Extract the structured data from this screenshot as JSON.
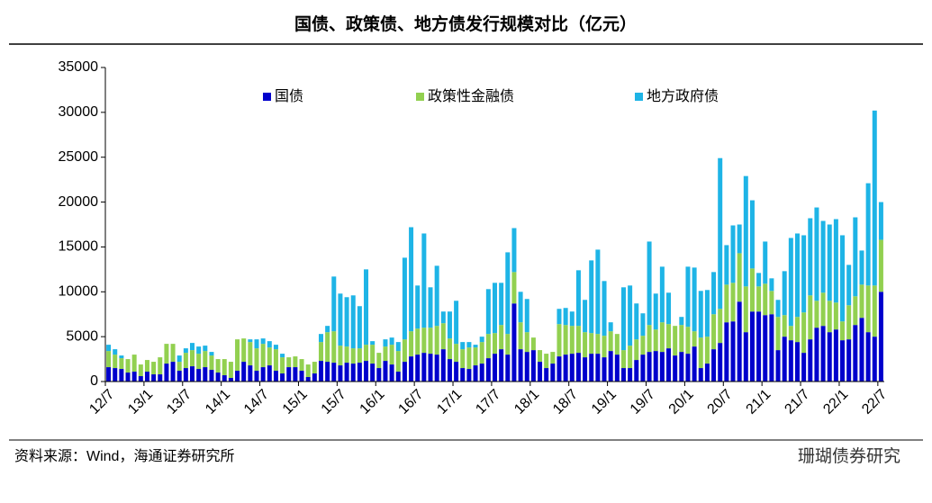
{
  "chart_data": {
    "type": "stacked_bar",
    "title": "国债、政策债、地方债发行规模对比（亿元）",
    "source": "资料来源：Wind，海通证券研究所",
    "watermark": "珊瑚债券研究",
    "categories": [
      "12/7",
      null,
      null,
      null,
      null,
      null,
      "13/1",
      null,
      null,
      null,
      null,
      null,
      "13/7",
      null,
      null,
      null,
      null,
      null,
      "14/1",
      null,
      null,
      null,
      null,
      null,
      "14/7",
      null,
      null,
      null,
      null,
      null,
      "15/1",
      null,
      null,
      null,
      null,
      null,
      "15/7",
      null,
      null,
      null,
      null,
      null,
      "16/1",
      null,
      null,
      null,
      null,
      null,
      "16/7",
      null,
      null,
      null,
      null,
      null,
      "17/1",
      null,
      null,
      null,
      null,
      null,
      "17/7",
      null,
      null,
      null,
      null,
      null,
      "18/1",
      null,
      null,
      null,
      null,
      null,
      "18/7",
      null,
      null,
      null,
      null,
      null,
      "19/1",
      null,
      null,
      null,
      null,
      null,
      "19/7",
      null,
      null,
      null,
      null,
      null,
      "20/1",
      null,
      null,
      null,
      null,
      null,
      "20/7",
      null,
      null,
      null,
      null,
      null,
      "21/1",
      null,
      null,
      null,
      null,
      null,
      "21/7",
      null,
      null,
      null,
      null,
      null,
      "22/1",
      null,
      null,
      null,
      null,
      null,
      "22/7"
    ],
    "series": [
      {
        "name": "国债",
        "color": "#0000cc",
        "values": [
          1600,
          1500,
          1400,
          1000,
          1100,
          600,
          1100,
          800,
          800,
          2000,
          2200,
          1200,
          1500,
          1700,
          1400,
          1600,
          1300,
          1000,
          700,
          400,
          1200,
          2200,
          1800,
          1200,
          1600,
          1800,
          1200,
          900,
          1600,
          1600,
          1200,
          500,
          900,
          2300,
          2200,
          2100,
          1800,
          2100,
          2000,
          2100,
          2300,
          2000,
          1500,
          2300,
          1900,
          1100,
          2200,
          2800,
          3000,
          3200,
          3100,
          3000,
          3600,
          2500,
          2200,
          1500,
          1400,
          1800,
          2000,
          2600,
          3100,
          3600,
          3000,
          8700,
          3600,
          3300,
          3500,
          2200,
          1500,
          2000,
          2800,
          3000,
          3100,
          3200,
          2700,
          3100,
          3100,
          2700,
          3400,
          3000,
          1500,
          1500,
          2400,
          3000,
          3300,
          3400,
          3300,
          3700,
          2900,
          3300,
          3100,
          3900,
          1500,
          2000,
          3600,
          4300,
          6600,
          6700,
          8900,
          5500,
          7800,
          7800,
          7400,
          7500,
          3500,
          5000,
          4600,
          4400,
          3200,
          4700,
          6000,
          6200,
          5500,
          5800,
          4600,
          4700,
          6300,
          7100,
          5500,
          5000,
          10000
        ]
      },
      {
        "name": "政策性金融债",
        "color": "#92d050",
        "values": [
          1800,
          1500,
          1200,
          1500,
          1900,
          1300,
          1300,
          1400,
          1900,
          2200,
          2000,
          1000,
          1700,
          1800,
          1700,
          1800,
          1600,
          1500,
          1800,
          1800,
          3500,
          2600,
          2600,
          2500,
          2600,
          2000,
          2400,
          1800,
          1100,
          1200,
          1300,
          1400,
          1300,
          2100,
          3300,
          3500,
          2200,
          1800,
          1700,
          1600,
          1800,
          2100,
          1700,
          1600,
          2200,
          2300,
          2500,
          2800,
          2900,
          2800,
          2900,
          3200,
          2900,
          2300,
          2000,
          2100,
          2400,
          2000,
          2400,
          2700,
          2300,
          2700,
          2300,
          3500,
          3000,
          2200,
          1400,
          1300,
          1600,
          1300,
          3600,
          3300,
          3100,
          3000,
          2800,
          2300,
          2200,
          2400,
          2200,
          2300,
          2000,
          2500,
          2300,
          2100,
          3000,
          2400,
          3300,
          2700,
          3300,
          3000,
          3000,
          1700,
          3400,
          3000,
          3900,
          3800,
          4200,
          4300,
          5400,
          5100,
          4800,
          2800,
          3500,
          2600,
          3700,
          2400,
          1600,
          2800,
          4500,
          4900,
          3000,
          3700,
          3500,
          3000,
          2100,
          3800,
          3200,
          3700,
          5200,
          5700,
          5800
        ]
      },
      {
        "name": "地方政府债",
        "color": "#1eb4e6",
        "values": [
          700,
          600,
          300,
          0,
          0,
          0,
          0,
          0,
          0,
          0,
          0,
          700,
          500,
          800,
          800,
          600,
          400,
          0,
          0,
          0,
          0,
          0,
          300,
          1000,
          600,
          700,
          500,
          400,
          0,
          0,
          0,
          0,
          0,
          900,
          700,
          6100,
          5800,
          5500,
          5900,
          4700,
          8400,
          400,
          0,
          800,
          800,
          1000,
          9100,
          11600,
          4800,
          10500,
          4500,
          6700,
          1300,
          3000,
          4800,
          800,
          600,
          300,
          600,
          5000,
          5600,
          4700,
          9100,
          4900,
          3400,
          3700,
          0,
          0,
          0,
          0,
          1700,
          1900,
          1600,
          6200,
          3600,
          8100,
          9400,
          6100,
          1000,
          0,
          7000,
          6700,
          4000,
          2500,
          9300,
          4000,
          6200,
          3500,
          0,
          900,
          6700,
          7100,
          5200,
          5200,
          4700,
          16800,
          4400,
          6400,
          3200,
          12300,
          7600,
          1500,
          4700,
          1400,
          1900,
          4900,
          9800,
          9300,
          8600,
          8600,
          10400,
          8000,
          8500,
          9300,
          9600,
          4500,
          8800,
          3800,
          11400,
          19500,
          4200
        ]
      }
    ],
    "ylim": [
      0,
      35000
    ],
    "yticks": [
      0,
      5000,
      10000,
      15000,
      20000,
      25000,
      30000,
      35000
    ]
  }
}
